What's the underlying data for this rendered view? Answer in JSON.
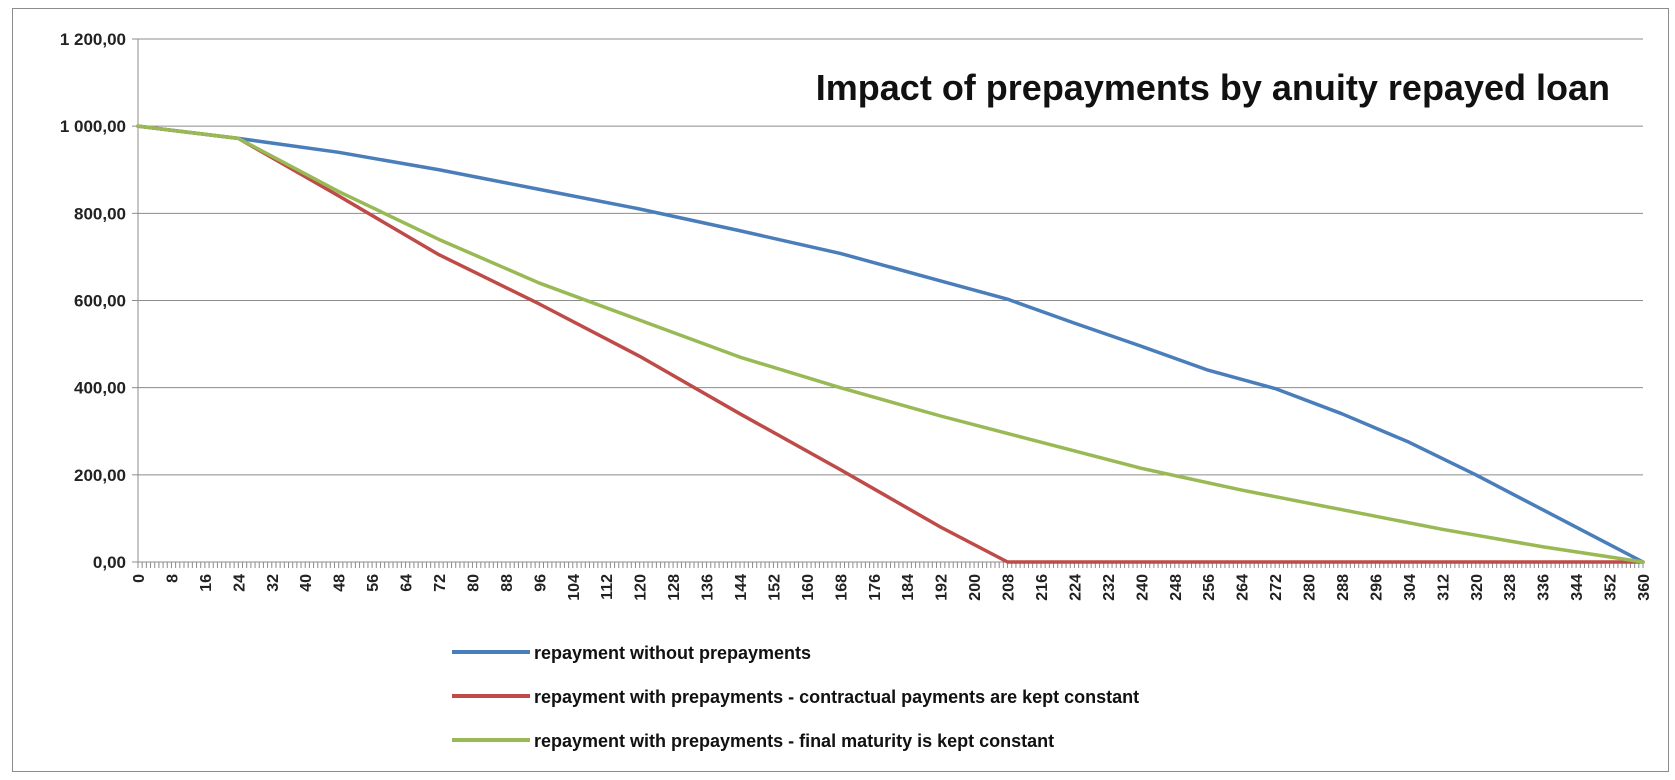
{
  "chart_data": {
    "type": "line",
    "title": "Impact of prepayments by anuity repayed loan",
    "xlabel": "",
    "ylabel": "",
    "xlim": [
      0,
      360
    ],
    "ylim": [
      0,
      1200
    ],
    "y_ticks": [
      0,
      200,
      400,
      600,
      800,
      1000,
      1200
    ],
    "y_tick_labels": [
      "0,00",
      "200,00",
      "400,00",
      "600,00",
      "800,00",
      "1 000,00",
      "1 200,00"
    ],
    "x_tick_step": 8,
    "x_minor_step": 1,
    "grid": "horizontal",
    "legend_position": "bottom",
    "series": [
      {
        "name": "repayment without prepayments",
        "color": "#4a7ebb",
        "x": [
          0,
          24,
          48,
          72,
          96,
          120,
          144,
          168,
          192,
          208,
          224,
          240,
          256,
          272,
          288,
          304,
          320,
          336,
          352,
          360
        ],
        "y": [
          1000,
          972,
          940,
          900,
          855,
          810,
          760,
          708,
          645,
          603,
          548,
          495,
          440,
          398,
          340,
          275,
          200,
          120,
          40,
          0
        ]
      },
      {
        "name": "repayment with prepayments - contractual payments are kept constant",
        "color": "#be4b48",
        "x": [
          0,
          24,
          48,
          72,
          96,
          120,
          144,
          168,
          192,
          208,
          240,
          280,
          320,
          360
        ],
        "y": [
          1000,
          972,
          840,
          705,
          592,
          472,
          340,
          212,
          80,
          0,
          0,
          0,
          0,
          0
        ]
      },
      {
        "name": "repayment with prepayments - final maturity is kept constant",
        "color": "#98b954",
        "x": [
          0,
          24,
          48,
          72,
          96,
          120,
          144,
          168,
          192,
          216,
          240,
          264,
          288,
          312,
          336,
          360
        ],
        "y": [
          1000,
          972,
          850,
          740,
          640,
          555,
          470,
          400,
          335,
          275,
          215,
          165,
          120,
          75,
          35,
          0
        ]
      }
    ]
  }
}
